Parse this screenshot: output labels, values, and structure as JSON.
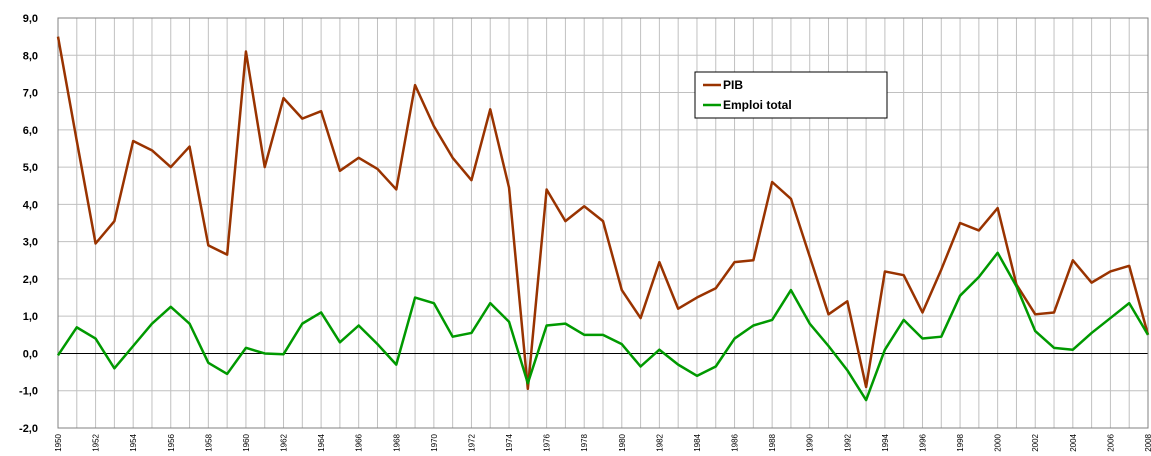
{
  "chart_data": {
    "type": "line",
    "x": [
      1950,
      1951,
      1952,
      1953,
      1954,
      1955,
      1956,
      1957,
      1958,
      1959,
      1960,
      1961,
      1962,
      1963,
      1964,
      1965,
      1966,
      1967,
      1968,
      1969,
      1970,
      1971,
      1972,
      1973,
      1974,
      1975,
      1976,
      1977,
      1978,
      1979,
      1980,
      1981,
      1982,
      1983,
      1984,
      1985,
      1986,
      1987,
      1988,
      1989,
      1990,
      1991,
      1992,
      1993,
      1994,
      1995,
      1996,
      1997,
      1998,
      1999,
      2000,
      2001,
      2002,
      2003,
      2004,
      2005,
      2006,
      2007,
      2008
    ],
    "series": [
      {
        "name": "PIB",
        "color": "#993300",
        "values": [
          8.5,
          5.7,
          2.95,
          3.55,
          5.7,
          5.45,
          5.0,
          5.55,
          2.9,
          2.65,
          8.1,
          5.0,
          6.85,
          6.3,
          6.5,
          4.9,
          5.25,
          4.95,
          4.4,
          7.2,
          6.1,
          5.25,
          4.65,
          6.55,
          4.45,
          -0.95,
          4.4,
          3.55,
          3.95,
          3.55,
          1.7,
          0.95,
          2.45,
          1.2,
          1.5,
          1.75,
          2.45,
          2.5,
          4.6,
          4.15,
          2.6,
          1.05,
          1.4,
          -0.9,
          2.2,
          2.1,
          1.1,
          2.25,
          3.5,
          3.3,
          3.9,
          1.85,
          1.05,
          1.1,
          2.5,
          1.9,
          2.2,
          2.35,
          0.5
        ]
      },
      {
        "name": "Emploi total",
        "color": "#009900",
        "values": [
          -0.05,
          0.7,
          0.4,
          -0.4,
          0.2,
          0.8,
          1.25,
          0.8,
          -0.25,
          -0.55,
          0.15,
          0.0,
          -0.02,
          0.8,
          1.1,
          0.3,
          0.75,
          0.25,
          -0.3,
          1.5,
          1.35,
          0.45,
          0.55,
          1.35,
          0.85,
          -0.8,
          0.75,
          0.8,
          0.5,
          0.5,
          0.25,
          -0.35,
          0.1,
          -0.3,
          -0.6,
          -0.35,
          0.4,
          0.75,
          0.9,
          1.7,
          0.8,
          0.2,
          -0.45,
          -1.25,
          0.1,
          0.9,
          0.4,
          0.45,
          1.55,
          2.05,
          2.7,
          1.8,
          0.6,
          0.15,
          0.1,
          0.55,
          0.95,
          1.35,
          0.5
        ]
      }
    ],
    "xlim": [
      1950,
      2008
    ],
    "xticks": [
      1950,
      1952,
      1954,
      1956,
      1958,
      1960,
      1962,
      1964,
      1966,
      1968,
      1970,
      1972,
      1974,
      1976,
      1978,
      1980,
      1982,
      1984,
      1986,
      1988,
      1990,
      1992,
      1994,
      1996,
      1998,
      2000,
      2002,
      2004,
      2006,
      2008
    ],
    "ylim": [
      -2,
      9
    ],
    "yticks": [
      {
        "value": -2,
        "label": "-2,0"
      },
      {
        "value": -1,
        "label": "-1,0"
      },
      {
        "value": 0,
        "label": "0,0"
      },
      {
        "value": 1,
        "label": "1,0"
      },
      {
        "value": 2,
        "label": "2,0"
      },
      {
        "value": 3,
        "label": "3,0"
      },
      {
        "value": 4,
        "label": "4,0"
      },
      {
        "value": 5,
        "label": "5,0"
      },
      {
        "value": 6,
        "label": "6,0"
      },
      {
        "value": 7,
        "label": "7,0"
      },
      {
        "value": 8,
        "label": "8,0"
      },
      {
        "value": 9,
        "label": "9,0"
      }
    ],
    "grid": true,
    "legend": "upper-center"
  }
}
